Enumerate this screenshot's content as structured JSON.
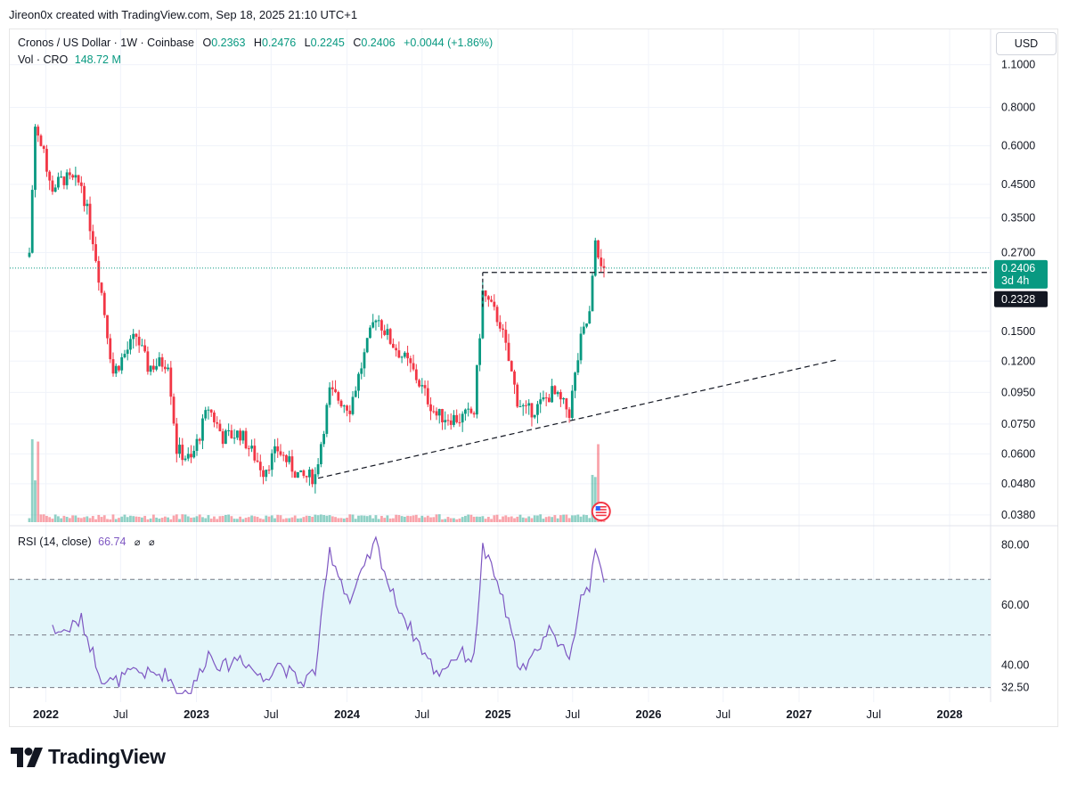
{
  "header": {
    "text": "Jireon0x created with TradingView.com, Sep 18, 2025 21:10 UTC+1"
  },
  "legend": {
    "symbol": "Cronos / US Dollar · 1W · Coinbase",
    "o_label": "O",
    "o": "0.2363",
    "h_label": "H",
    "h": "0.2476",
    "l_label": "L",
    "l": "0.2245",
    "c_label": "C",
    "c": "0.2406",
    "change": "+0.0044 (+1.86%)"
  },
  "volume": {
    "label": "Vol · CRO",
    "value": "148.72 M"
  },
  "rsi": {
    "label": "RSI (14, close)",
    "value": "66.74",
    "icon1": "⌀",
    "icon2": "⌀"
  },
  "currency_button": "USD",
  "price_axis": {
    "ticks": [
      "1.1000",
      "0.8000",
      "0.6000",
      "0.4500",
      "0.3500",
      "0.2700",
      "0.1500",
      "0.1200",
      "0.0950",
      "0.0750",
      "0.0600",
      "0.0480",
      "0.0380"
    ],
    "current_price": "0.2406",
    "countdown": "3d 4h",
    "level_price": "0.2328"
  },
  "rsi_axis": {
    "ticks": [
      "80.00",
      "60.00",
      "40.00",
      "32.50"
    ]
  },
  "time_axis": {
    "ticks": [
      {
        "label": "2022",
        "bold": true
      },
      {
        "label": "Jul",
        "bold": false
      },
      {
        "label": "2023",
        "bold": true
      },
      {
        "label": "Jul",
        "bold": false
      },
      {
        "label": "2024",
        "bold": true
      },
      {
        "label": "Jul",
        "bold": false
      },
      {
        "label": "2025",
        "bold": true
      },
      {
        "label": "Jul",
        "bold": false
      },
      {
        "label": "2026",
        "bold": true
      },
      {
        "label": "Jul",
        "bold": false
      },
      {
        "label": "2027",
        "bold": true
      },
      {
        "label": "Jul",
        "bold": false
      },
      {
        "label": "2028",
        "bold": true
      }
    ]
  },
  "colors": {
    "up": "#089981",
    "down": "#f23645",
    "rsi": "#7e57c2",
    "rsi_band": "#e3f6fa",
    "grid": "#f0f3fa"
  },
  "icons": {
    "event_flag": "us-flag-icon"
  },
  "brand": {
    "name": "TradingView"
  },
  "chart_data": {
    "type": "candlestick",
    "interval": "1W",
    "scale": "log",
    "price_ylim": [
      0.036,
      1.15
    ],
    "rsi_ylim": [
      30,
      84
    ],
    "rsi_band": [
      32.5,
      68.5
    ],
    "current_price": 0.2406,
    "resistance": 0.2328,
    "anchors": [
      {
        "date": "2021-11-22",
        "price": 0.27,
        "rsi": null
      },
      {
        "date": "2021-12-06",
        "price": 0.7,
        "rsi": null
      },
      {
        "date": "2021-12-20",
        "price": 0.6,
        "rsi": null
      },
      {
        "date": "2022-01-17",
        "price": 0.44,
        "rsi": 52
      },
      {
        "date": "2022-02-14",
        "price": 0.47,
        "rsi": 51
      },
      {
        "date": "2022-03-28",
        "price": 0.45,
        "rsi": 55
      },
      {
        "date": "2022-04-25",
        "price": 0.3,
        "rsi": 44
      },
      {
        "date": "2022-05-16",
        "price": 0.2,
        "rsi": 36
      },
      {
        "date": "2022-06-13",
        "price": 0.11,
        "rsi": 34
      },
      {
        "date": "2022-08-08",
        "price": 0.145,
        "rsi": 38
      },
      {
        "date": "2022-09-05",
        "price": 0.115,
        "rsi": 37
      },
      {
        "date": "2022-10-24",
        "price": 0.12,
        "rsi": 37
      },
      {
        "date": "2022-11-14",
        "price": 0.062,
        "rsi": 31
      },
      {
        "date": "2022-12-19",
        "price": 0.057,
        "rsi": 31
      },
      {
        "date": "2023-01-30",
        "price": 0.085,
        "rsi": 44
      },
      {
        "date": "2023-03-06",
        "price": 0.068,
        "rsi": 39
      },
      {
        "date": "2023-04-17",
        "price": 0.07,
        "rsi": 43
      },
      {
        "date": "2023-06-12",
        "price": 0.053,
        "rsi": 35
      },
      {
        "date": "2023-07-17",
        "price": 0.062,
        "rsi": 41
      },
      {
        "date": "2023-09-11",
        "price": 0.05,
        "rsi": 34
      },
      {
        "date": "2023-10-16",
        "price": 0.051,
        "rsi": 38
      },
      {
        "date": "2023-11-20",
        "price": 0.095,
        "rsi": 78
      },
      {
        "date": "2024-01-08",
        "price": 0.085,
        "rsi": 61
      },
      {
        "date": "2024-03-11",
        "price": 0.17,
        "rsi": 81
      },
      {
        "date": "2024-04-15",
        "price": 0.14,
        "rsi": 65
      },
      {
        "date": "2024-06-03",
        "price": 0.115,
        "rsi": 52
      },
      {
        "date": "2024-08-05",
        "price": 0.08,
        "rsi": 37
      },
      {
        "date": "2024-09-30",
        "price": 0.078,
        "rsi": 44
      },
      {
        "date": "2024-11-04",
        "price": 0.082,
        "rsi": 42
      },
      {
        "date": "2024-11-25",
        "price": 0.2,
        "rsi": 79
      },
      {
        "date": "2025-01-06",
        "price": 0.16,
        "rsi": 65
      },
      {
        "date": "2025-02-17",
        "price": 0.09,
        "rsi": 42
      },
      {
        "date": "2025-03-10",
        "price": 0.082,
        "rsi": 38
      },
      {
        "date": "2025-04-07",
        "price": 0.085,
        "rsi": 46
      },
      {
        "date": "2025-05-12",
        "price": 0.095,
        "rsi": 53
      },
      {
        "date": "2025-06-23",
        "price": 0.082,
        "rsi": 40
      },
      {
        "date": "2025-07-21",
        "price": 0.14,
        "rsi": 64
      },
      {
        "date": "2025-08-11",
        "price": 0.17,
        "rsi": 66
      },
      {
        "date": "2025-08-25",
        "price": 0.28,
        "rsi": 80
      },
      {
        "date": "2025-09-15",
        "price": 0.2406,
        "rsi": 66.74
      }
    ],
    "trendline": [
      {
        "date": "2023-10-23",
        "price": 0.05
      },
      {
        "date": "2027-04-01",
        "price": 0.121
      }
    ],
    "volume_spikes": [
      {
        "date": "2021-12-06",
        "value": "high"
      },
      {
        "date": "2025-08-25",
        "value": "high"
      }
    ]
  }
}
